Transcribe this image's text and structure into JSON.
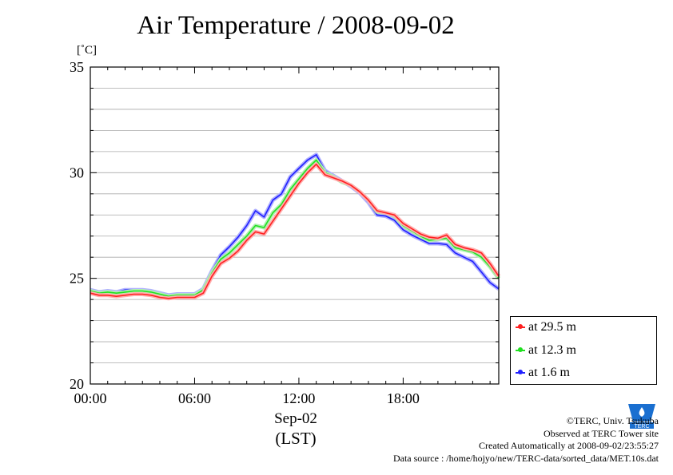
{
  "title": "Air Temperature / 2008-09-02",
  "unit_label": "[˚C]",
  "x_date_label": "Sep-02",
  "x_tz_label": "(LST)",
  "footer": {
    "credit": "©TERC, Univ. Tsukuba",
    "site": "Observed at TERC Tower site",
    "created": "Created Automatically at 2008-09-02/23:55:27",
    "source": "Data source : /home/hojyo/new/TERC-data/sorted_data/MET.10s.dat"
  },
  "logo_icon": "terc-logo-icon",
  "colors": {
    "series_1": "#ff2020",
    "series_2": "#20e020",
    "series_3": "#2020ff",
    "halo_1": "#ffb0b0",
    "halo_2": "#b0f0b0",
    "halo_3": "#b0b0ff",
    "grid": "#aaaaaa"
  },
  "chart_data": {
    "type": "line",
    "title": "Air Temperature / 2008-09-02",
    "xlabel": "Sep-02 (LST)",
    "ylabel": "[˚C]",
    "x_unit": "hour of day",
    "xlim": [
      0,
      23.5
    ],
    "ylim": [
      20,
      35
    ],
    "x_ticks": [
      0,
      6,
      12,
      18
    ],
    "x_tick_labels": [
      "00:00",
      "06:00",
      "12:00",
      "18:00"
    ],
    "y_ticks": [
      20,
      25,
      30,
      35
    ],
    "y_tick_labels": [
      "20",
      "25",
      "30",
      "35"
    ],
    "grid": true,
    "legend_position": "bottom-right, outside plot",
    "x": [
      0,
      0.5,
      1,
      1.5,
      2,
      2.5,
      3,
      3.5,
      4,
      4.5,
      5,
      5.5,
      6,
      6.5,
      7,
      7.5,
      8,
      8.5,
      9,
      9.5,
      10,
      10.5,
      11,
      11.5,
      12,
      12.5,
      13,
      13.5,
      14,
      14.5,
      15,
      15.5,
      16,
      16.5,
      17,
      17.5,
      18,
      18.5,
      19,
      19.5,
      20,
      20.5,
      21,
      21.5,
      22,
      22.5,
      23,
      23.5
    ],
    "series": [
      {
        "name": "at 29.5 m",
        "values": [
          24.3,
          24.2,
          24.2,
          24.15,
          24.2,
          24.25,
          24.25,
          24.2,
          24.1,
          24.05,
          24.1,
          24.1,
          24.1,
          24.3,
          25.1,
          25.7,
          25.95,
          26.3,
          26.8,
          27.2,
          27.1,
          27.7,
          28.3,
          28.9,
          29.5,
          30.0,
          30.4,
          29.9,
          29.75,
          29.6,
          29.4,
          29.1,
          28.7,
          28.2,
          28.1,
          28.0,
          27.6,
          27.35,
          27.1,
          26.95,
          26.9,
          27.05,
          26.6,
          26.45,
          26.35,
          26.2,
          25.7,
          25.1
        ]
      },
      {
        "name": "at 12.3 m",
        "values": [
          24.4,
          24.3,
          24.35,
          24.3,
          24.35,
          24.4,
          24.4,
          24.35,
          24.25,
          24.15,
          24.2,
          24.2,
          24.2,
          24.45,
          25.25,
          25.9,
          26.2,
          26.6,
          27.0,
          27.5,
          27.4,
          28.1,
          28.5,
          29.2,
          29.7,
          30.2,
          30.6,
          30.0,
          29.8,
          29.55,
          29.4,
          29.1,
          28.7,
          28.15,
          28.1,
          27.95,
          27.5,
          27.25,
          27.0,
          26.8,
          26.85,
          26.9,
          26.45,
          26.35,
          26.25,
          26.0,
          25.55,
          25.0
        ]
      },
      {
        "name": "at 1.6 m",
        "values": [
          24.45,
          24.35,
          24.4,
          24.35,
          24.45,
          24.45,
          24.45,
          24.4,
          24.3,
          24.2,
          24.25,
          24.25,
          24.25,
          24.5,
          25.35,
          26.1,
          26.5,
          26.95,
          27.5,
          28.2,
          27.9,
          28.7,
          29.0,
          29.8,
          30.2,
          30.6,
          30.85,
          30.1,
          29.85,
          29.6,
          29.35,
          29.05,
          28.6,
          28.0,
          27.95,
          27.75,
          27.3,
          27.05,
          26.85,
          26.65,
          26.65,
          26.6,
          26.2,
          26.0,
          25.8,
          25.3,
          24.8,
          24.5
        ]
      }
    ]
  }
}
